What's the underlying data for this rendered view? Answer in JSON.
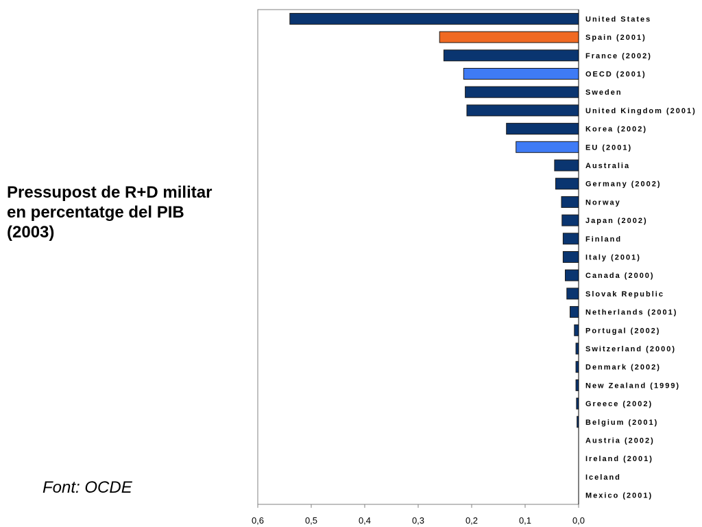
{
  "title": "Pressupost de R+D militar\nen percentatge del PIB\n(2003)",
  "source": "Font: OCDE",
  "colors": {
    "default": "#0a3570",
    "highlight": "#f06a23",
    "aggregate": "#3f7bf5",
    "axis": "#808080"
  },
  "chart_data": {
    "type": "bar",
    "orientation": "horizontal",
    "x_reversed": true,
    "xlim": [
      0,
      0.6
    ],
    "xticks": [
      "0,6",
      "0,5",
      "0,4",
      "0,3",
      "0,2",
      "0,1",
      "0,0"
    ],
    "categories": [
      "United States",
      "Spain (2001)",
      "France (2002)",
      "OECD (2001)",
      "Sweden",
      "United Kingdom (2001)",
      "Korea (2002)",
      "EU (2001)",
      "Australia",
      "Germany (2002)",
      "Norway",
      "Japan (2002)",
      "Finland",
      "Italy (2001)",
      "Canada (2000)",
      "Slovak Republic",
      "Netherlands (2001)",
      "Portugal (2002)",
      "Switzerland (2000)",
      "Denmark (2002)",
      "New Zealand (1999)",
      "Greece (2002)",
      "Belgium (2001)",
      "Austria (2002)",
      "Ireland (2001)",
      "Iceland",
      "Mexico (2001)"
    ],
    "values": [
      0.54,
      0.26,
      0.252,
      0.215,
      0.212,
      0.209,
      0.135,
      0.117,
      0.045,
      0.043,
      0.032,
      0.031,
      0.029,
      0.029,
      0.025,
      0.022,
      0.016,
      0.008,
      0.005,
      0.005,
      0.005,
      0.004,
      0.003,
      0.0,
      0.0,
      0.0,
      0.0
    ],
    "bar_colors": [
      "default",
      "highlight",
      "default",
      "aggregate",
      "default",
      "default",
      "default",
      "aggregate",
      "default",
      "default",
      "default",
      "default",
      "default",
      "default",
      "default",
      "default",
      "default",
      "default",
      "default",
      "default",
      "default",
      "default",
      "default",
      "default",
      "default",
      "default",
      "default"
    ]
  }
}
